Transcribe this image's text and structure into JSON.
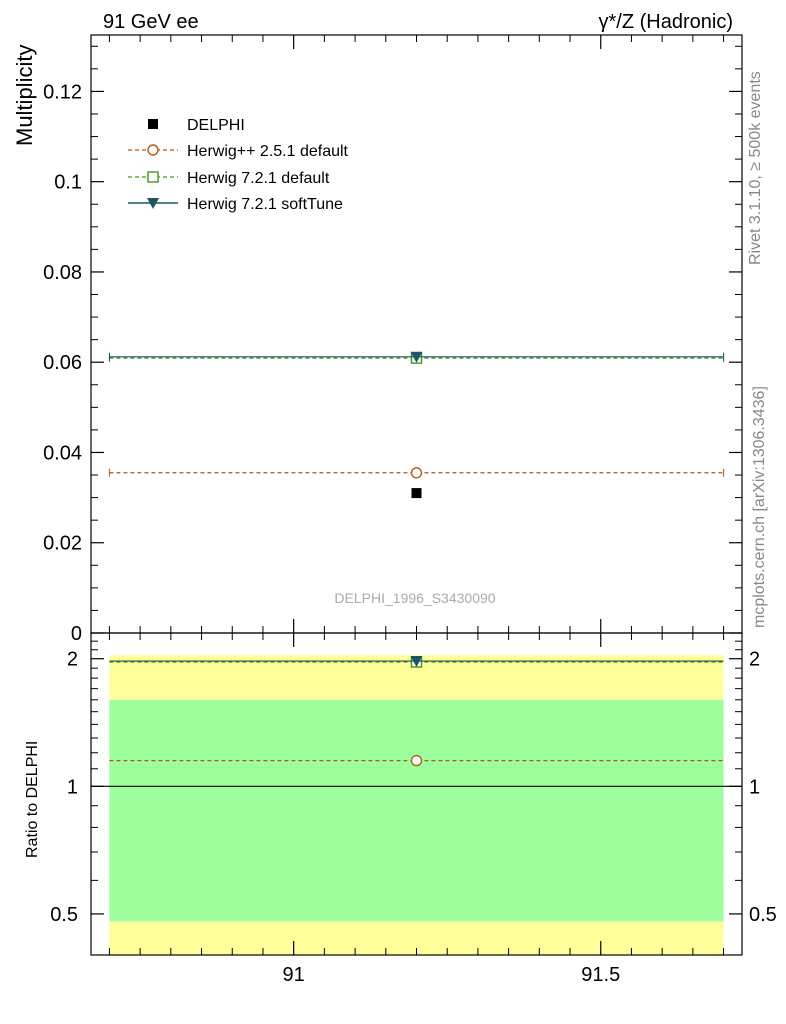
{
  "header": {
    "left": "91 GeV ee",
    "right": "γ*/Z (Hadronic)"
  },
  "side_labels": {
    "rivet": "Rivet 3.1.10, ≥ 500k events",
    "mcplots": "mcplots.cern.ch [arXiv:1306.3436]"
  },
  "watermark": "DELPHI_1996_S3430090",
  "colors": {
    "data": "#000000",
    "herwigpp": "#b35a12",
    "herwig721": "#3a9a1c",
    "softtune": "#1b5566",
    "band_inner": "#9cff9c",
    "band_outer": "#ffff99"
  },
  "chart_data": [
    {
      "type": "scatter",
      "ylabel": "Multiplicity",
      "ylim": [
        0,
        0.1325
      ],
      "xlim": [
        90.67,
        91.73
      ],
      "y_ticks": [
        {
          "value": 0,
          "label": "0"
        },
        {
          "value": 0.02,
          "label": "0.02"
        },
        {
          "value": 0.04,
          "label": "0.04"
        },
        {
          "value": 0.06,
          "label": "0.06"
        },
        {
          "value": 0.08,
          "label": "0.08"
        },
        {
          "value": 0.1,
          "label": "0.1"
        },
        {
          "value": 0.12,
          "label": "0.12"
        }
      ],
      "legend_position": "top-left",
      "series": [
        {
          "name": "DELPHI",
          "x": [
            91.2
          ],
          "y": [
            0.031
          ],
          "marker": "filled-square",
          "line": "none"
        },
        {
          "name": "Herwig++ 2.5.1 default",
          "x": [
            91.2
          ],
          "y": [
            0.0355
          ],
          "xrange": [
            90.7,
            91.7
          ],
          "marker": "open-circle",
          "line": "dashed"
        },
        {
          "name": "Herwig 7.2.1 default",
          "x": [
            91.2
          ],
          "y": [
            0.0609
          ],
          "xrange": [
            90.7,
            91.7
          ],
          "marker": "open-square",
          "line": "dashed"
        },
        {
          "name": "Herwig 7.2.1 softTune",
          "x": [
            91.2
          ],
          "y": [
            0.0612
          ],
          "xrange": [
            90.7,
            91.7
          ],
          "marker": "filled-down-triangle",
          "line": "solid"
        }
      ]
    },
    {
      "type": "scatter",
      "ylabel": "Ratio to DELPHI",
      "ylim": [
        0.4,
        2.3
      ],
      "xlim": [
        90.67,
        91.73
      ],
      "y_ticks": [
        {
          "value": 0.5,
          "label": "0.5"
        },
        {
          "value": 1,
          "label": "1"
        },
        {
          "value": 2,
          "label": "2"
        }
      ],
      "x_ticks": [
        {
          "value": 91,
          "label": "91"
        },
        {
          "value": 91.5,
          "label": "91.5"
        }
      ],
      "bands": {
        "inner": [
          0.48,
          1.6
        ],
        "outer": [
          0.4,
          2.04
        ],
        "xrange": [
          90.7,
          91.7
        ]
      },
      "series": [
        {
          "name": "Herwig++ 2.5.1 default",
          "x": [
            91.2
          ],
          "y": [
            1.15
          ]
        },
        {
          "name": "Herwig 7.2.1 default",
          "x": [
            91.2
          ],
          "y": [
            1.965
          ]
        },
        {
          "name": "Herwig 7.2.1 softTune",
          "x": [
            91.2
          ],
          "y": [
            1.975
          ]
        }
      ]
    }
  ]
}
